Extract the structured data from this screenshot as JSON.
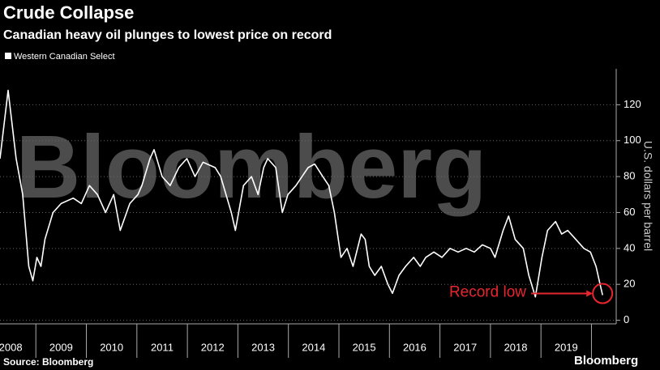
{
  "chart_data": {
    "type": "line",
    "title": "Crude Collapse",
    "subtitle": "Canadian heavy oil plunges to lowest price on record",
    "y_label": "U.S. dollars per barrel",
    "watermark": "Bloomberg",
    "annotation": "Record low",
    "source": "Source: Bloomberg",
    "logo": "Bloomberg",
    "x": [
      2008.29,
      2008.45,
      2008.61,
      2008.74,
      2008.86,
      2008.94,
      2009.02,
      2009.1,
      2009.18,
      2009.34,
      2009.5,
      2009.74,
      2009.9,
      2010.06,
      2010.22,
      2010.38,
      2010.54,
      2010.67,
      2010.86,
      2011.02,
      2011.1,
      2011.26,
      2011.34,
      2011.5,
      2011.66,
      2011.83,
      2011.99,
      2012.15,
      2012.31,
      2012.55,
      2012.66,
      2012.87,
      2012.95,
      2013.11,
      2013.27,
      2013.4,
      2013.51,
      2013.59,
      2013.75,
      2013.88,
      2013.99,
      2014.15,
      2014.27,
      2014.39,
      2014.52,
      2014.68,
      2014.8,
      2014.91,
      2015.04,
      2015.16,
      2015.28,
      2015.44,
      2015.52,
      2015.6,
      2015.71,
      2015.84,
      2015.97,
      2016.06,
      2016.19,
      2016.32,
      2016.48,
      2016.61,
      2016.72,
      2016.88,
      2017.04,
      2017.2,
      2017.36,
      2017.52,
      2017.68,
      2017.84,
      2018.0,
      2018.09,
      2018.25,
      2018.36,
      2018.49,
      2018.65,
      2018.76,
      2018.89,
      2019.02,
      2019.13,
      2019.29,
      2019.41,
      2019.53,
      2019.69,
      2019.85,
      2019.98,
      2020.09,
      2020.17,
      2020.22
    ],
    "series": [
      {
        "name": "Western Canadian Select",
        "color": "#ffffff",
        "values": [
          90,
          128,
          90,
          70,
          30,
          22,
          35,
          30,
          45,
          60,
          65,
          68,
          65,
          75,
          70,
          60,
          70,
          50,
          65,
          70,
          75,
          90,
          95,
          80,
          75,
          85,
          90,
          80,
          88,
          85,
          80,
          60,
          50,
          75,
          80,
          70,
          85,
          90,
          85,
          60,
          70,
          75,
          80,
          85,
          87,
          80,
          75,
          60,
          35,
          40,
          30,
          48,
          45,
          30,
          25,
          30,
          20,
          15,
          25,
          30,
          35,
          30,
          35,
          38,
          35,
          40,
          38,
          40,
          38,
          42,
          40,
          35,
          50,
          58,
          45,
          40,
          25,
          13,
          35,
          50,
          55,
          48,
          50,
          45,
          40,
          38,
          30,
          20,
          14
        ]
      }
    ],
    "xlim": [
      2008.29,
      2020.49
    ],
    "xticks": [
      {
        "value": 2008.5,
        "label": "2008"
      },
      {
        "value": 2009.5,
        "label": "2009"
      },
      {
        "value": 2010.5,
        "label": "2010"
      },
      {
        "value": 2011.5,
        "label": "2011"
      },
      {
        "value": 2012.5,
        "label": "2012"
      },
      {
        "value": 2013.5,
        "label": "2013"
      },
      {
        "value": 2014.5,
        "label": "2014"
      },
      {
        "value": 2015.5,
        "label": "2015"
      },
      {
        "value": 2016.5,
        "label": "2016"
      },
      {
        "value": 2017.5,
        "label": "2017"
      },
      {
        "value": 2018.5,
        "label": "2018"
      },
      {
        "value": 2019.5,
        "label": "2019"
      }
    ],
    "ylim": [
      -2,
      140
    ],
    "yticks": [
      0,
      20,
      40,
      60,
      80,
      100,
      120
    ],
    "grid": true
  }
}
